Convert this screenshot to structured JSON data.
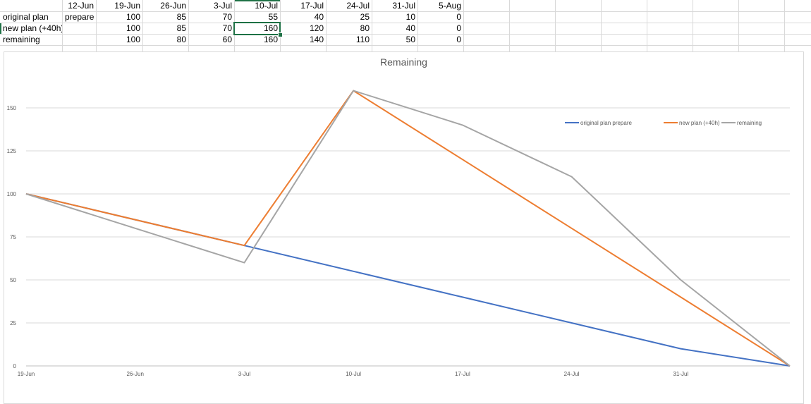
{
  "sheet": {
    "header": [
      "",
      "12-Jun",
      "19-Jun",
      "26-Jun",
      "3-Jul",
      "10-Jul",
      "17-Jul",
      "24-Jul",
      "31-Jul",
      "5-Aug"
    ],
    "rows": [
      [
        "original plan",
        "prepare",
        "100",
        "85",
        "70",
        "55",
        "40",
        "25",
        "10",
        "0"
      ],
      [
        "new plan (+40h)",
        "",
        "100",
        "85",
        "70",
        "160",
        "120",
        "80",
        "40",
        "0"
      ],
      [
        "remaining",
        "",
        "100",
        "80",
        "60",
        "160",
        "140",
        "110",
        "50",
        "0"
      ]
    ]
  },
  "chart_data": {
    "type": "line",
    "title": "Remaining",
    "categories": [
      "19-Jun",
      "26-Jun",
      "3-Jul",
      "10-Jul",
      "17-Jul",
      "24-Jul",
      "31-Jul",
      "5-Aug"
    ],
    "x_tick_labels": [
      "19-Jun",
      "26-Jun",
      "3-Jul",
      "10-Jul",
      "17-Jul",
      "24-Jul",
      "31-Jul"
    ],
    "ylim": [
      0,
      175
    ],
    "yticks": [
      0,
      25,
      50,
      75,
      100,
      125,
      150
    ],
    "grid": true,
    "legend_position": "top-right",
    "series": [
      {
        "name": "original plan prepare",
        "color": "#4472c4",
        "values": [
          100,
          85,
          70,
          55,
          40,
          25,
          10,
          0
        ]
      },
      {
        "name": "new plan (+40h)",
        "color": "#ed7d31",
        "values": [
          100,
          85,
          70,
          160,
          120,
          80,
          40,
          0
        ]
      },
      {
        "name": "remaining",
        "color": "#a5a5a5",
        "values": [
          100,
          80,
          60,
          160,
          140,
          110,
          50,
          0
        ]
      }
    ]
  }
}
